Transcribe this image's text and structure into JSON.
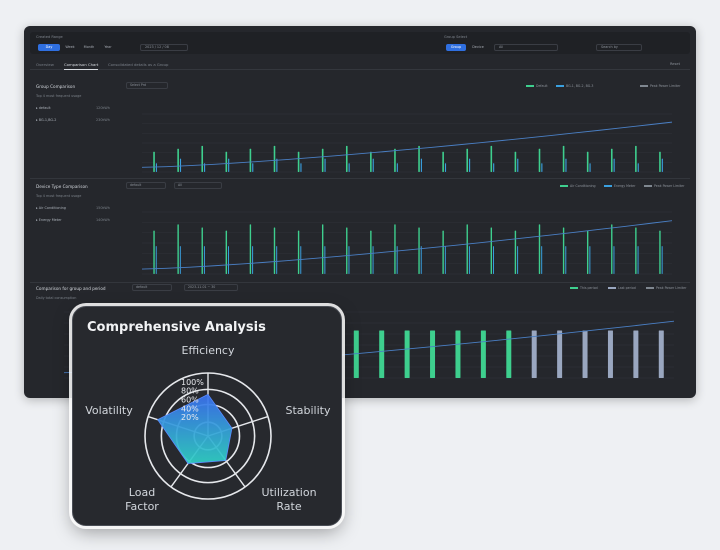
{
  "popup": {
    "title": "Comprehensive Analysis",
    "axes": [
      "Efficiency",
      "Stability",
      "Utilization Rate",
      "Load Factor",
      "Volatility"
    ],
    "axis_lines": [
      [
        "Efficiency"
      ],
      [
        "Stability"
      ],
      [
        "Utilization",
        "Rate"
      ],
      [
        "Load",
        "Factor"
      ],
      [
        "Volatility"
      ]
    ],
    "ring_labels": [
      "100%",
      "80%",
      "60%",
      "40%",
      "20%"
    ],
    "colors": {
      "fill_top": "#3a6ff0",
      "fill_bottom": "#2fd0c4",
      "ring": "#e6e8ec"
    }
  },
  "radar_data": {
    "type": "radar",
    "axes": [
      "Efficiency",
      "Stability",
      "Utilization Rate",
      "Load Factor",
      "Volatility"
    ],
    "values": [
      0.66,
      0.4,
      0.48,
      0.54,
      0.84
    ],
    "rmax": 1.0
  },
  "dashboard": {
    "filter_left_label": "Created Range",
    "filter_left_buttons": [
      "Day",
      "Week",
      "Month",
      "Year"
    ],
    "filter_left_date": "2023 / 12 / 08",
    "filter_right_label": "Group Select",
    "filter_right_buttons": [
      "Group",
      "Device"
    ],
    "filter_right_value": "All",
    "filter_right_search": "Search by",
    "tabs": [
      "Overview",
      "Comparison Chart",
      "Consolidated details as a Group"
    ],
    "reset": "Reset",
    "sections": [
      {
        "title": "Group Comparison",
        "subtitle": "Top 4 most frequent usage",
        "select": "Select Prd",
        "legend": [
          "Default",
          "BG-1, BG-2, BG-3",
          "Peak Power Limiter"
        ],
        "rows": [
          {
            "name": "default",
            "value": "120kWh"
          },
          {
            "name": "BG-1,BG-2",
            "value": "230kWh"
          }
        ]
      },
      {
        "title": "Device Type Comparison",
        "subtitle": "Top 4 most frequent usage",
        "select": "default",
        "select2": "All",
        "legend": [
          "Air Conditioning",
          "Energy Meter",
          "Peak Power Limiter"
        ],
        "rows": [
          {
            "name": "Air Conditioning",
            "value": "150kWh"
          },
          {
            "name": "Energy Meter",
            "value": "140kWh"
          }
        ]
      },
      {
        "title": "Comparison for group and period",
        "subtitle": "Daily total consumption",
        "select": "default",
        "select2": "2023-11-01 ~ 30",
        "legend": [
          "This period",
          "Last period",
          "Peak Power Limiter"
        ]
      }
    ]
  }
}
